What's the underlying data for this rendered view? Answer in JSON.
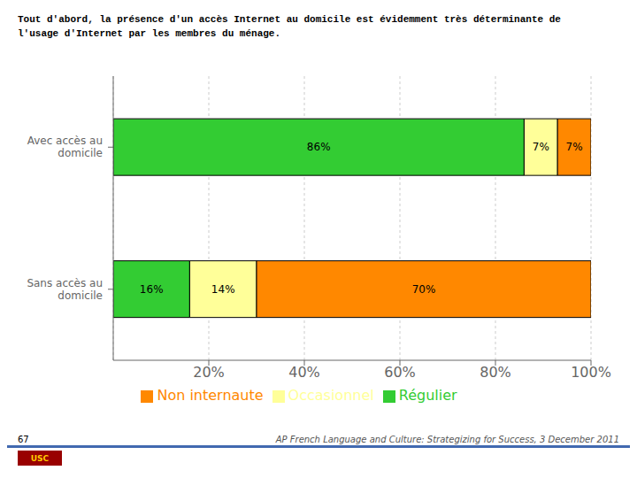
{
  "chart_data": {
    "type": "bar",
    "orientation": "horizontal",
    "stacked": true,
    "title": "Tout d'abord, la présence d'un accès Internet au domicile est évidemment très déterminante de\nl'usage d'Internet par les membres du ménage.",
    "categories": [
      "Avec accès au\ndomicile",
      "Sans accès au\ndomicile"
    ],
    "series": [
      {
        "name": "Régulier",
        "color": "#33CC33",
        "values": [
          86,
          16
        ],
        "value_labels": [
          "86%",
          "16%"
        ]
      },
      {
        "name": "Occasionnel",
        "color": "#FFFF99",
        "values": [
          7,
          14
        ],
        "value_labels": [
          "7%",
          "14%"
        ]
      },
      {
        "name": "Non internaute",
        "color": "#FF8800",
        "values": [
          7,
          70
        ],
        "value_labels": [
          "7%",
          "70%"
        ]
      }
    ],
    "xlim": [
      0,
      100
    ],
    "xticks": [
      {
        "value": 20,
        "label": "20%"
      },
      {
        "value": 40,
        "label": "40%"
      },
      {
        "value": 60,
        "label": "60%"
      },
      {
        "value": 80,
        "label": "80%"
      },
      {
        "value": 100,
        "label": "100%"
      }
    ],
    "grid": true,
    "legend": "bottom",
    "data_labels": true,
    "annotations": [
      "67",
      "AP French Language and Culture: Strategizing for Success, 3 December 2011",
      "USC"
    ]
  }
}
